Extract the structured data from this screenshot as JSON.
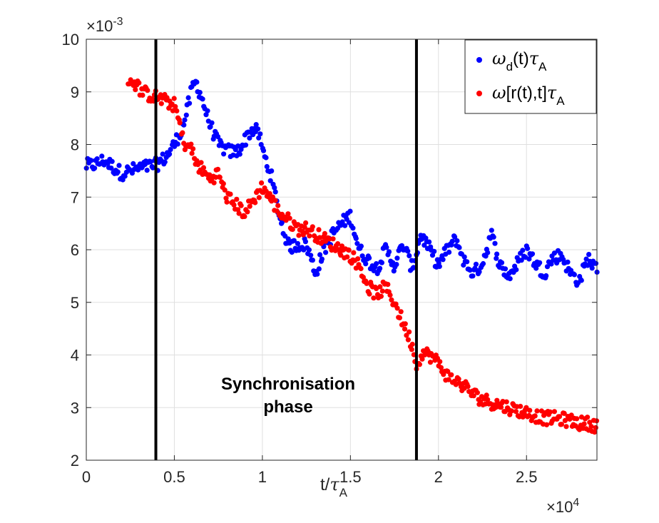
{
  "chart_data": {
    "type": "scatter",
    "title": "",
    "xlabel": "t/τA",
    "xlabel_parts": {
      "base": "t/",
      "sym": "τ",
      "sub": "A"
    },
    "ylabel": "",
    "xlim": [
      0,
      2.9
    ],
    "ylim": [
      2,
      10
    ],
    "x_ticks": [
      0,
      0.5,
      1,
      1.5,
      2,
      2.5
    ],
    "x_tick_labels": [
      "0",
      "0.5",
      "1",
      "1.5",
      "2",
      "2.5"
    ],
    "y_ticks": [
      2,
      3,
      4,
      5,
      6,
      7,
      8,
      9,
      10
    ],
    "y_tick_labels": [
      "2",
      "3",
      "4",
      "5",
      "6",
      "7",
      "8",
      "9",
      "10"
    ],
    "x_multiplier": {
      "base": "×10",
      "exp": "4"
    },
    "y_multiplier": {
      "base": "×10",
      "exp": "-3"
    },
    "grid": true,
    "legend_position": "top-right",
    "annotation": {
      "lines": [
        "Synchronisation",
        "phase"
      ]
    },
    "vertical_lines": [
      0.395,
      1.875
    ],
    "series": [
      {
        "name": "ωd(t)τA",
        "legend_parts": [
          {
            "t": "ω",
            "s": "normal"
          },
          {
            "t": "d",
            "s": "sub"
          },
          {
            "t": "(t)",
            "s": "normal"
          },
          {
            "t": "τ",
            "s": "normal"
          },
          {
            "t": "A",
            "s": "sub"
          }
        ],
        "color": "#0000ff",
        "keypoints": [
          [
            0.0,
            7.6
          ],
          [
            0.05,
            7.62
          ],
          [
            0.1,
            7.7
          ],
          [
            0.15,
            7.58
          ],
          [
            0.2,
            7.45
          ],
          [
            0.25,
            7.5
          ],
          [
            0.3,
            7.55
          ],
          [
            0.35,
            7.58
          ],
          [
            0.4,
            7.62
          ],
          [
            0.45,
            7.75
          ],
          [
            0.5,
            8.0
          ],
          [
            0.55,
            8.35
          ],
          [
            0.6,
            9.05
          ],
          [
            0.62,
            9.2
          ],
          [
            0.65,
            8.95
          ],
          [
            0.7,
            8.4
          ],
          [
            0.75,
            8.0
          ],
          [
            0.8,
            7.88
          ],
          [
            0.85,
            7.85
          ],
          [
            0.88,
            7.95
          ],
          [
            0.92,
            8.2
          ],
          [
            0.95,
            8.3
          ],
          [
            0.98,
            8.2
          ],
          [
            1.0,
            7.9
          ],
          [
            1.05,
            7.4
          ],
          [
            1.1,
            6.6
          ],
          [
            1.15,
            6.05
          ],
          [
            1.2,
            6.1
          ],
          [
            1.25,
            6.1
          ],
          [
            1.28,
            5.8
          ],
          [
            1.3,
            5.55
          ],
          [
            1.35,
            6.0
          ],
          [
            1.4,
            6.3
          ],
          [
            1.45,
            6.5
          ],
          [
            1.5,
            6.65
          ],
          [
            1.55,
            6.0
          ],
          [
            1.6,
            5.8
          ],
          [
            1.65,
            5.65
          ],
          [
            1.7,
            6.0
          ],
          [
            1.75,
            5.7
          ],
          [
            1.8,
            6.1
          ],
          [
            1.85,
            5.65
          ],
          [
            1.88,
            6.0
          ],
          [
            1.9,
            6.3
          ],
          [
            1.95,
            6.0
          ],
          [
            2.0,
            5.7
          ],
          [
            2.05,
            6.0
          ],
          [
            2.1,
            6.2
          ],
          [
            2.15,
            5.75
          ],
          [
            2.2,
            5.55
          ],
          [
            2.25,
            5.75
          ],
          [
            2.3,
            6.3
          ],
          [
            2.35,
            5.7
          ],
          [
            2.4,
            5.5
          ],
          [
            2.45,
            5.75
          ],
          [
            2.5,
            6.0
          ],
          [
            2.55,
            5.75
          ],
          [
            2.6,
            5.55
          ],
          [
            2.65,
            5.85
          ],
          [
            2.7,
            5.9
          ],
          [
            2.75,
            5.55
          ],
          [
            2.8,
            5.4
          ],
          [
            2.85,
            5.85
          ],
          [
            2.9,
            5.6
          ]
        ]
      },
      {
        "name": "ω[r(t),t]τA",
        "legend_parts": [
          {
            "t": "ω",
            "s": "normal"
          },
          {
            "t": "[r(t),t]",
            "s": "normal"
          },
          {
            "t": "τ",
            "s": "normal"
          },
          {
            "t": "A",
            "s": "sub"
          }
        ],
        "color": "#ff0000",
        "keypoints": [
          [
            0.24,
            9.25
          ],
          [
            0.28,
            9.15
          ],
          [
            0.32,
            9.0
          ],
          [
            0.35,
            8.95
          ],
          [
            0.4,
            8.9
          ],
          [
            0.45,
            8.82
          ],
          [
            0.5,
            8.75
          ],
          [
            0.53,
            8.4
          ],
          [
            0.55,
            8.05
          ],
          [
            0.6,
            7.9
          ],
          [
            0.62,
            7.65
          ],
          [
            0.65,
            7.55
          ],
          [
            0.7,
            7.35
          ],
          [
            0.75,
            7.45
          ],
          [
            0.78,
            7.15
          ],
          [
            0.8,
            7.0
          ],
          [
            0.85,
            6.85
          ],
          [
            0.9,
            6.7
          ],
          [
            0.95,
            6.95
          ],
          [
            1.0,
            7.2
          ],
          [
            1.05,
            6.95
          ],
          [
            1.1,
            6.7
          ],
          [
            1.15,
            6.55
          ],
          [
            1.2,
            6.4
          ],
          [
            1.25,
            6.4
          ],
          [
            1.3,
            6.3
          ],
          [
            1.35,
            6.2
          ],
          [
            1.4,
            6.1
          ],
          [
            1.45,
            6.0
          ],
          [
            1.5,
            5.9
          ],
          [
            1.55,
            5.7
          ],
          [
            1.6,
            5.3
          ],
          [
            1.65,
            5.15
          ],
          [
            1.7,
            5.3
          ],
          [
            1.75,
            5.0
          ],
          [
            1.8,
            4.6
          ],
          [
            1.85,
            4.2
          ],
          [
            1.88,
            3.75
          ],
          [
            1.9,
            4.05
          ],
          [
            1.95,
            4.0
          ],
          [
            2.0,
            3.85
          ],
          [
            2.05,
            3.6
          ],
          [
            2.1,
            3.5
          ],
          [
            2.15,
            3.4
          ],
          [
            2.2,
            3.25
          ],
          [
            2.25,
            3.15
          ],
          [
            2.3,
            3.1
          ],
          [
            2.35,
            3.05
          ],
          [
            2.4,
            3.0
          ],
          [
            2.45,
            2.95
          ],
          [
            2.5,
            2.9
          ],
          [
            2.55,
            2.85
          ],
          [
            2.6,
            2.8
          ],
          [
            2.65,
            2.8
          ],
          [
            2.7,
            2.78
          ],
          [
            2.75,
            2.75
          ],
          [
            2.8,
            2.7
          ],
          [
            2.85,
            2.7
          ],
          [
            2.9,
            2.65
          ]
        ]
      }
    ]
  }
}
